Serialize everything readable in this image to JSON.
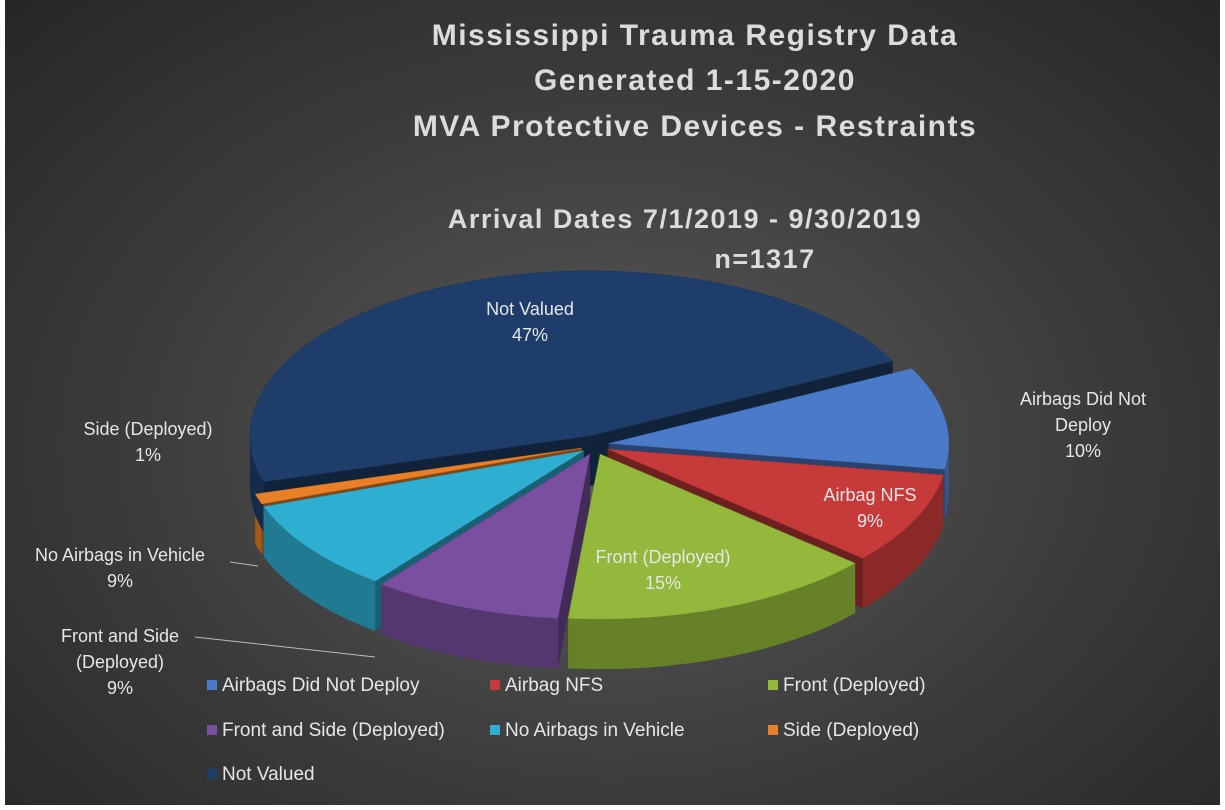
{
  "chart_data": {
    "type": "pie3d",
    "title": [
      "Mississippi Trauma Registry Data",
      "Generated 1-15-2020",
      "MVA Protective Devices - Restraints"
    ],
    "subtitle": [
      "Arrival Dates 7/1/2019 - 9/30/2019",
      "n=1317"
    ],
    "categories": [
      "Airbags Did Not Deploy",
      "Airbag NFS",
      "Front (Deployed)",
      "Front and Side (Deployed)",
      "No Airbags in Vehicle",
      "Side (Deployed)",
      "Not Valued"
    ],
    "values": [
      10,
      9,
      15,
      9,
      9,
      1,
      47
    ],
    "value_labels": [
      "10%",
      "9%",
      "15%",
      "9%",
      "9%",
      "1%",
      "47%"
    ],
    "colors": [
      "#4a7ac8",
      "#c63a3a",
      "#93b83b",
      "#7a4fa0",
      "#2eaed0",
      "#e97f26",
      "#1f3d6b"
    ],
    "legend": "bottom"
  }
}
